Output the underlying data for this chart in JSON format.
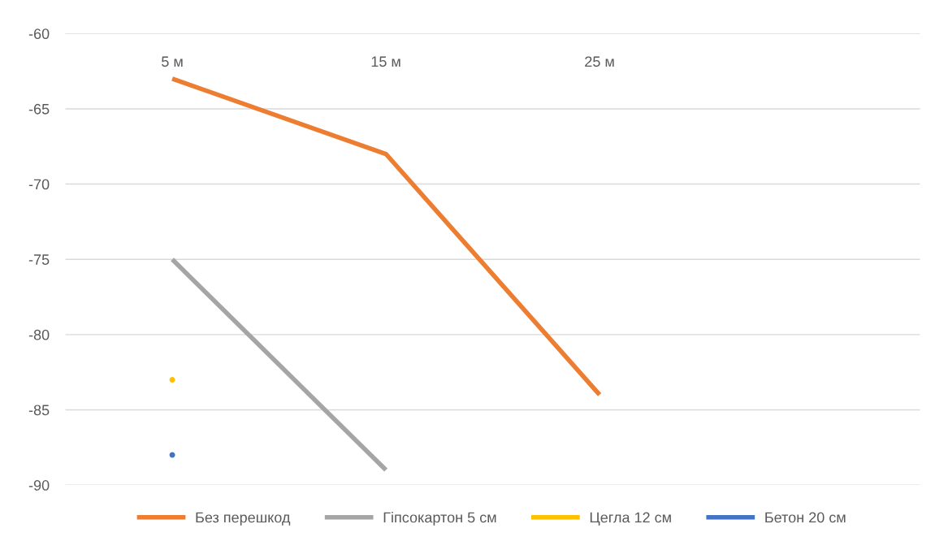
{
  "chart_data": {
    "type": "line",
    "categories": [
      "5 м",
      "15 м",
      "25 м",
      null
    ],
    "series": [
      {
        "name": "Без перешкод",
        "color": "#ed7d31",
        "values": [
          -63,
          -68,
          -84,
          null
        ]
      },
      {
        "name": "Гіпсокартон 5 см",
        "color": "#a5a5a5",
        "values": [
          -75,
          -89,
          null,
          null
        ]
      },
      {
        "name": "Цегла 12 см",
        "color": "#ffc000",
        "values": [
          -83,
          null,
          null,
          null
        ]
      },
      {
        "name": "Бетон 20 см",
        "color": "#4472c4",
        "values": [
          -88,
          null,
          null,
          null
        ]
      }
    ],
    "ylim": [
      -90,
      -60
    ],
    "yticks": [
      -60,
      -65,
      -70,
      -75,
      -80,
      -85,
      -90
    ],
    "grid": "y",
    "legend": "bottom",
    "marker": "none",
    "line_style": "solid"
  }
}
